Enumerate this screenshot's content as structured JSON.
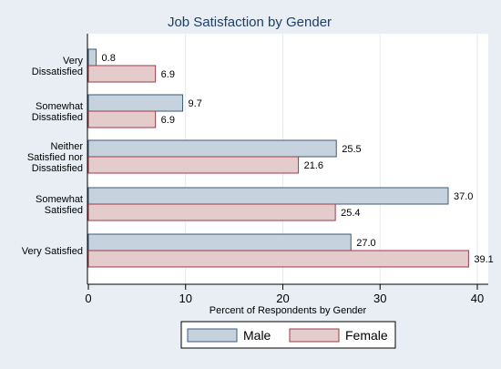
{
  "chart_data": {
    "type": "bar",
    "orientation": "horizontal",
    "title": "Job Satisfaction by Gender",
    "xlabel": "Percent of Respondents by Gender",
    "xlim": [
      0,
      40
    ],
    "xticks": [
      0,
      10,
      20,
      30,
      40
    ],
    "grid": true,
    "legend_position": "bottom",
    "categories": [
      [
        "Very",
        "Dissatisfied"
      ],
      [
        "Somewhat",
        "Dissatisfied"
      ],
      [
        "Neither",
        "Satisfied nor",
        "Dissatisfied"
      ],
      [
        "Somewhat",
        "Satisfied"
      ],
      [
        "Very Satisfied"
      ]
    ],
    "series": [
      {
        "name": "Male",
        "fill": "#c6d2de",
        "stroke": "#3f5a78",
        "values": [
          0.8,
          9.7,
          25.5,
          37.0,
          27.0
        ],
        "labels": [
          "0.8",
          "9.7",
          "25.5",
          "37.0",
          "27.0"
        ]
      },
      {
        "name": "Female",
        "fill": "#e4cccd",
        "stroke": "#9e3a45",
        "values": [
          6.9,
          6.9,
          21.6,
          25.4,
          39.1
        ],
        "labels": [
          "6.9",
          "6.9",
          "21.6",
          "25.4",
          "39.1"
        ]
      }
    ]
  },
  "colors": {
    "background": "#e8eef4",
    "plot_background": "#ffffff",
    "grid": "#e4eaf0",
    "title": "#1e3f66",
    "text": "#000000"
  }
}
